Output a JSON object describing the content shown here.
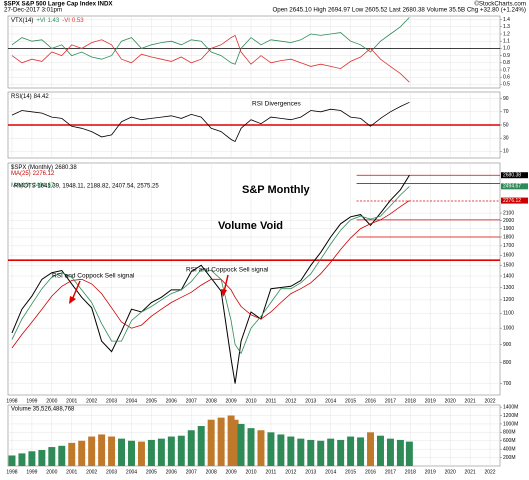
{
  "header": {
    "symbol": "$SPX S&P 500 Large Cap Index INDX",
    "date": "27-Dec-2017 3:01pm",
    "quote": "Open 2645.10 High 2694.97 Low 2605.52 Last 2680.38 Volume 35.5B Chg +32.80 (+1.24%)",
    "credit": "©StockCharts.com"
  },
  "chart_data": [
    {
      "type": "line",
      "title": "VTX(14)",
      "series": [
        {
          "name": "+VI",
          "color": "#2e8b57",
          "values": [
            1.05,
            1.15,
            1.1,
            1.12,
            1.0,
            1.05,
            0.9,
            0.95,
            0.88,
            0.85,
            0.9,
            1.1,
            1.15,
            1.0,
            1.05,
            1.08,
            1.1,
            1.05,
            1.12,
            1.1,
            0.95,
            0.9,
            0.8,
            0.78,
            1.0,
            1.15,
            1.05,
            1.12,
            1.1,
            1.08,
            1.12,
            1.2,
            1.18,
            1.2,
            1.22,
            1.1,
            1.05,
            0.95,
            1.1,
            1.2,
            1.3,
            1.43
          ]
        },
        {
          "name": "-VI",
          "color": "#e03030",
          "values": [
            0.9,
            0.8,
            0.85,
            0.82,
            0.95,
            0.9,
            1.05,
            1.0,
            1.08,
            1.12,
            1.05,
            0.85,
            0.8,
            0.92,
            0.88,
            0.85,
            0.82,
            0.88,
            0.8,
            0.85,
            1.0,
            1.05,
            1.15,
            1.18,
            0.95,
            0.78,
            0.9,
            0.8,
            0.83,
            0.85,
            0.8,
            0.75,
            0.78,
            0.75,
            0.72,
            0.82,
            0.88,
            1.0,
            0.85,
            0.75,
            0.65,
            0.53
          ]
        }
      ],
      "ylim": [
        0.45,
        1.45
      ],
      "yticks": [
        0.5,
        0.6,
        0.7,
        0.8,
        0.9,
        {
          "value": 1,
          "label": "1.0"
        },
        1.1,
        1.2,
        1.3,
        1.4
      ],
      "hline": {
        "value": 1,
        "color": "#000000"
      },
      "grid": true
    },
    {
      "type": "line",
      "title": "RSI(14)",
      "series": [
        {
          "color": "#000000",
          "values": [
            65,
            72,
            70,
            68,
            62,
            60,
            48,
            45,
            40,
            32,
            35,
            55,
            62,
            58,
            60,
            62,
            64,
            60,
            66,
            62,
            45,
            40,
            28,
            25,
            45,
            58,
            52,
            62,
            60,
            58,
            62,
            72,
            70,
            74,
            72,
            62,
            60,
            48,
            60,
            70,
            78,
            84.42
          ]
        }
      ],
      "ylim": [
        0,
        100
      ],
      "yticks": [
        10,
        30,
        50,
        70,
        90
      ],
      "hline": {
        "value": 50,
        "color": "#e00000"
      },
      "annotations": [
        "RSI Divergences"
      ],
      "grid": true
    },
    {
      "type": "line",
      "log": true,
      "title": "$SPX (Monthly)",
      "x": [
        1998,
        1998.5,
        1999,
        1999.5,
        2000,
        2000.5,
        2001,
        2001.5,
        2002,
        2002.5,
        2003,
        2003.5,
        2004,
        2004.5,
        2005,
        2005.5,
        2006,
        2006.5,
        2007,
        2007.5,
        2008,
        2008.5,
        2009,
        2009.2,
        2009.5,
        2010,
        2010.5,
        2011,
        2011.5,
        2012,
        2012.5,
        2013,
        2013.5,
        2014,
        2014.5,
        2015,
        2015.5,
        2016,
        2016.5,
        2017,
        2017.5,
        2017.95
      ],
      "series": [
        {
          "name": "$SPX (Monthly)",
          "color": "#000000",
          "values": [
            970,
            1130,
            1230,
            1370,
            1430,
            1450,
            1330,
            1220,
            1140,
            920,
            860,
            980,
            1130,
            1110,
            1180,
            1220,
            1280,
            1280,
            1440,
            1500,
            1380,
            1270,
            820,
            700,
            920,
            1110,
            1060,
            1290,
            1300,
            1310,
            1360,
            1500,
            1630,
            1800,
            1960,
            2050,
            2080,
            1940,
            2100,
            2280,
            2440,
            2680.38
          ]
        },
        {
          "name": "MA(25)",
          "color": "#cc0000",
          "values": [
            880,
            960,
            1040,
            1130,
            1230,
            1310,
            1360,
            1370,
            1330,
            1250,
            1140,
            1040,
            1000,
            1020,
            1080,
            1130,
            1180,
            1220,
            1260,
            1320,
            1370,
            1370,
            1280,
            1220,
            1150,
            1090,
            1060,
            1110,
            1180,
            1250,
            1290,
            1340,
            1420,
            1530,
            1660,
            1790,
            1900,
            1960,
            2010,
            2090,
            2190,
            2276.12
          ]
        },
        {
          "name": "MA(10)",
          "color": "#2e8b57",
          "values": [
            930,
            1060,
            1170,
            1290,
            1390,
            1430,
            1390,
            1280,
            1180,
            1030,
            920,
            920,
            1050,
            1110,
            1150,
            1200,
            1250,
            1280,
            1350,
            1460,
            1450,
            1370,
            1050,
            900,
            850,
            1000,
            1080,
            1180,
            1290,
            1290,
            1340,
            1420,
            1560,
            1720,
            1880,
            2010,
            2060,
            2020,
            2060,
            2200,
            2360,
            2494.67
          ]
        }
      ],
      "xlim": [
        1997.8,
        2022.5
      ],
      "xticks": [
        1998,
        1999,
        2000,
        2001,
        2002,
        2003,
        2004,
        2005,
        2006,
        2007,
        2008,
        2009,
        2010,
        2011,
        2012,
        2013,
        2014,
        2015,
        2016,
        2017,
        2018,
        2019,
        2020,
        2021,
        2022
      ],
      "ylim": [
        650,
        2900
      ],
      "yticks": [
        700,
        800,
        900,
        1000,
        1100,
        1200,
        1300,
        1400,
        1500,
        1600,
        1700,
        1800,
        1900,
        2000,
        2100
      ],
      "hline": {
        "value": 1550,
        "color": "#e00000"
      },
      "levels": [
        {
          "value": 2680,
          "x0": 2015.3
        },
        {
          "value": 2540,
          "x0": 2015.3
        },
        {
          "value": 2270,
          "x0": 2015.3,
          "dash": true
        },
        {
          "value": 2010,
          "x0": 2015.3
        },
        {
          "value": 1800,
          "x0": 2015.3
        }
      ],
      "level_color": "#e00000",
      "annotations": [
        "RMOTS 1641.39, 1948.11, 2188.82, 2407.54, 2575.25",
        "S&P Monthly",
        "Volume Void",
        "RSI and Coppock Sell signal",
        "RSI and Coppock Sell signal"
      ],
      "grid": true
    },
    {
      "type": "bar",
      "title": "Volume 35,526,488,768",
      "values": [
        250,
        300,
        350,
        380,
        450,
        480,
        550,
        600,
        700,
        750,
        700,
        650,
        600,
        580,
        620,
        650,
        700,
        720,
        850,
        950,
        1100,
        1150,
        1200,
        1100,
        1000,
        900,
        850,
        800,
        750,
        700,
        650,
        620,
        600,
        650,
        620,
        700,
        680,
        800,
        720,
        650,
        620,
        580
      ],
      "up_color": "#2e8b57",
      "down_color": "#c0782a",
      "ylim": [
        0,
        1450
      ],
      "yticks": [
        {
          "value": 200,
          "label": "200M"
        },
        {
          "value": 400,
          "label": "400M"
        },
        {
          "value": 600,
          "label": "600M"
        },
        {
          "value": 800,
          "label": "800M"
        },
        {
          "value": 1000,
          "label": "1000M"
        },
        {
          "value": 1200,
          "label": "1200M"
        },
        {
          "value": 1400,
          "label": "1400M"
        }
      ],
      "grid": true
    }
  ]
}
